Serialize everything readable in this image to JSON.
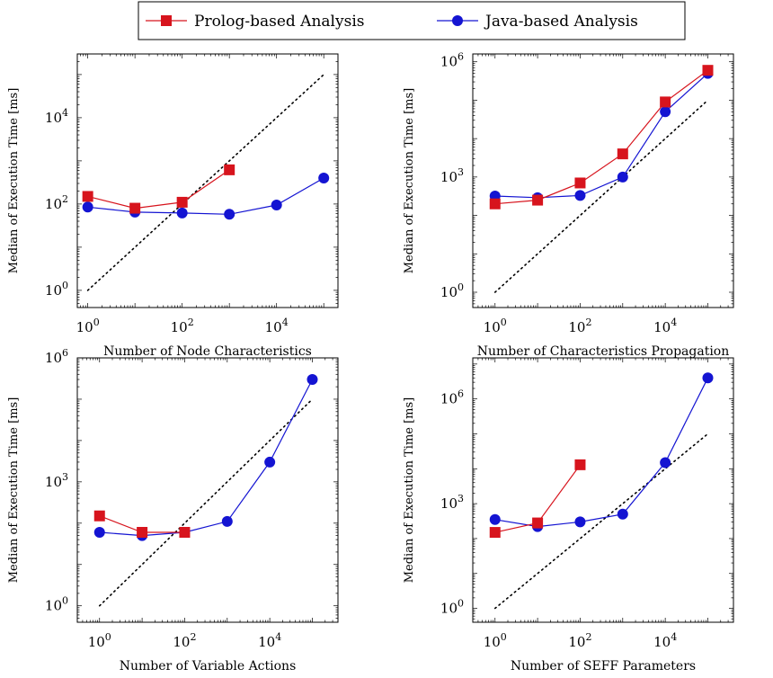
{
  "legend": {
    "position": "top-center",
    "entries": [
      {
        "label": "Prolog-based Analysis",
        "color": "#d7141d",
        "marker": "square"
      },
      {
        "label": "Java-based Analysis",
        "color": "#1414d2",
        "marker": "circle"
      }
    ]
  },
  "chart_data": [
    {
      "type": "line",
      "xscale": "log",
      "yscale": "log",
      "xlim": [
        0.6,
        200000
      ],
      "ylim": [
        0.4,
        300000
      ],
      "xticks": [
        1,
        100,
        10000
      ],
      "yticks": [
        1,
        100,
        10000
      ],
      "xlabel": "Number of Node Characteristics",
      "ylabel": "Median of Execution Time [ms]",
      "series": [
        {
          "name": "Prolog-based Analysis",
          "x": [
            1,
            10,
            100,
            1000
          ],
          "y": [
            150,
            80,
            110,
            620
          ]
        },
        {
          "name": "Java-based Analysis",
          "x": [
            1,
            10,
            100,
            1000,
            10000,
            100000
          ],
          "y": [
            85,
            65,
            62,
            58,
            95,
            400
          ]
        }
      ],
      "reference_line": {
        "style": "dotted",
        "x": [
          1,
          100000
        ],
        "y": [
          1,
          100000
        ]
      }
    },
    {
      "type": "line",
      "xscale": "log",
      "yscale": "log",
      "xlim": [
        0.3,
        400000
      ],
      "ylim": [
        0.4,
        1600000
      ],
      "xticks": [
        1,
        100,
        10000
      ],
      "yticks": [
        1,
        1000,
        1000000
      ],
      "xlabel": "Number of Characteristics Propagation",
      "ylabel": "Median of Execution Time [ms]",
      "series": [
        {
          "name": "Prolog-based Analysis",
          "x": [
            1,
            10,
            100,
            1000,
            10000,
            100000
          ],
          "y": [
            200,
            250,
            700,
            4000,
            90000,
            600000
          ]
        },
        {
          "name": "Java-based Analysis",
          "x": [
            1,
            10,
            100,
            1000,
            10000,
            100000
          ],
          "y": [
            320,
            290,
            330,
            1000,
            50000,
            500000
          ]
        }
      ],
      "reference_line": {
        "style": "dotted",
        "x": [
          1,
          100000
        ],
        "y": [
          1,
          100000
        ]
      }
    },
    {
      "type": "line",
      "xscale": "log",
      "yscale": "log",
      "xlim": [
        0.3,
        400000
      ],
      "ylim": [
        0.4,
        1000000
      ],
      "xticks": [
        1,
        100,
        10000
      ],
      "yticks": [
        1,
        1000,
        1000000
      ],
      "xlabel": "Number of Variable Actions",
      "ylabel": "Median of Execution Time [ms]",
      "series": [
        {
          "name": "Prolog-based Analysis",
          "x": [
            1,
            10,
            100
          ],
          "y": [
            150,
            60,
            60
          ]
        },
        {
          "name": "Java-based Analysis",
          "x": [
            1,
            10,
            100,
            1000,
            10000,
            100000
          ],
          "y": [
            60,
            50,
            60,
            110,
            3000,
            300000
          ]
        }
      ],
      "reference_line": {
        "style": "dotted",
        "x": [
          1,
          100000
        ],
        "y": [
          1,
          100000
        ]
      }
    },
    {
      "type": "line",
      "xscale": "log",
      "yscale": "log",
      "xlim": [
        0.3,
        400000
      ],
      "ylim": [
        0.4,
        15000000
      ],
      "xticks": [
        1,
        100,
        10000
      ],
      "yticks": [
        1,
        1000,
        1000000
      ],
      "xlabel": "Number of SEFF Parameters",
      "ylabel": "Median of Execution Time [ms]",
      "series": [
        {
          "name": "Prolog-based Analysis",
          "x": [
            1,
            10,
            100
          ],
          "y": [
            150,
            280,
            13000
          ]
        },
        {
          "name": "Java-based Analysis",
          "x": [
            1,
            10,
            100,
            1000,
            10000,
            100000
          ],
          "y": [
            350,
            220,
            300,
            500,
            15000,
            4000000
          ]
        }
      ],
      "reference_line": {
        "style": "dotted",
        "x": [
          1,
          100000
        ],
        "y": [
          1,
          100000
        ]
      }
    }
  ]
}
